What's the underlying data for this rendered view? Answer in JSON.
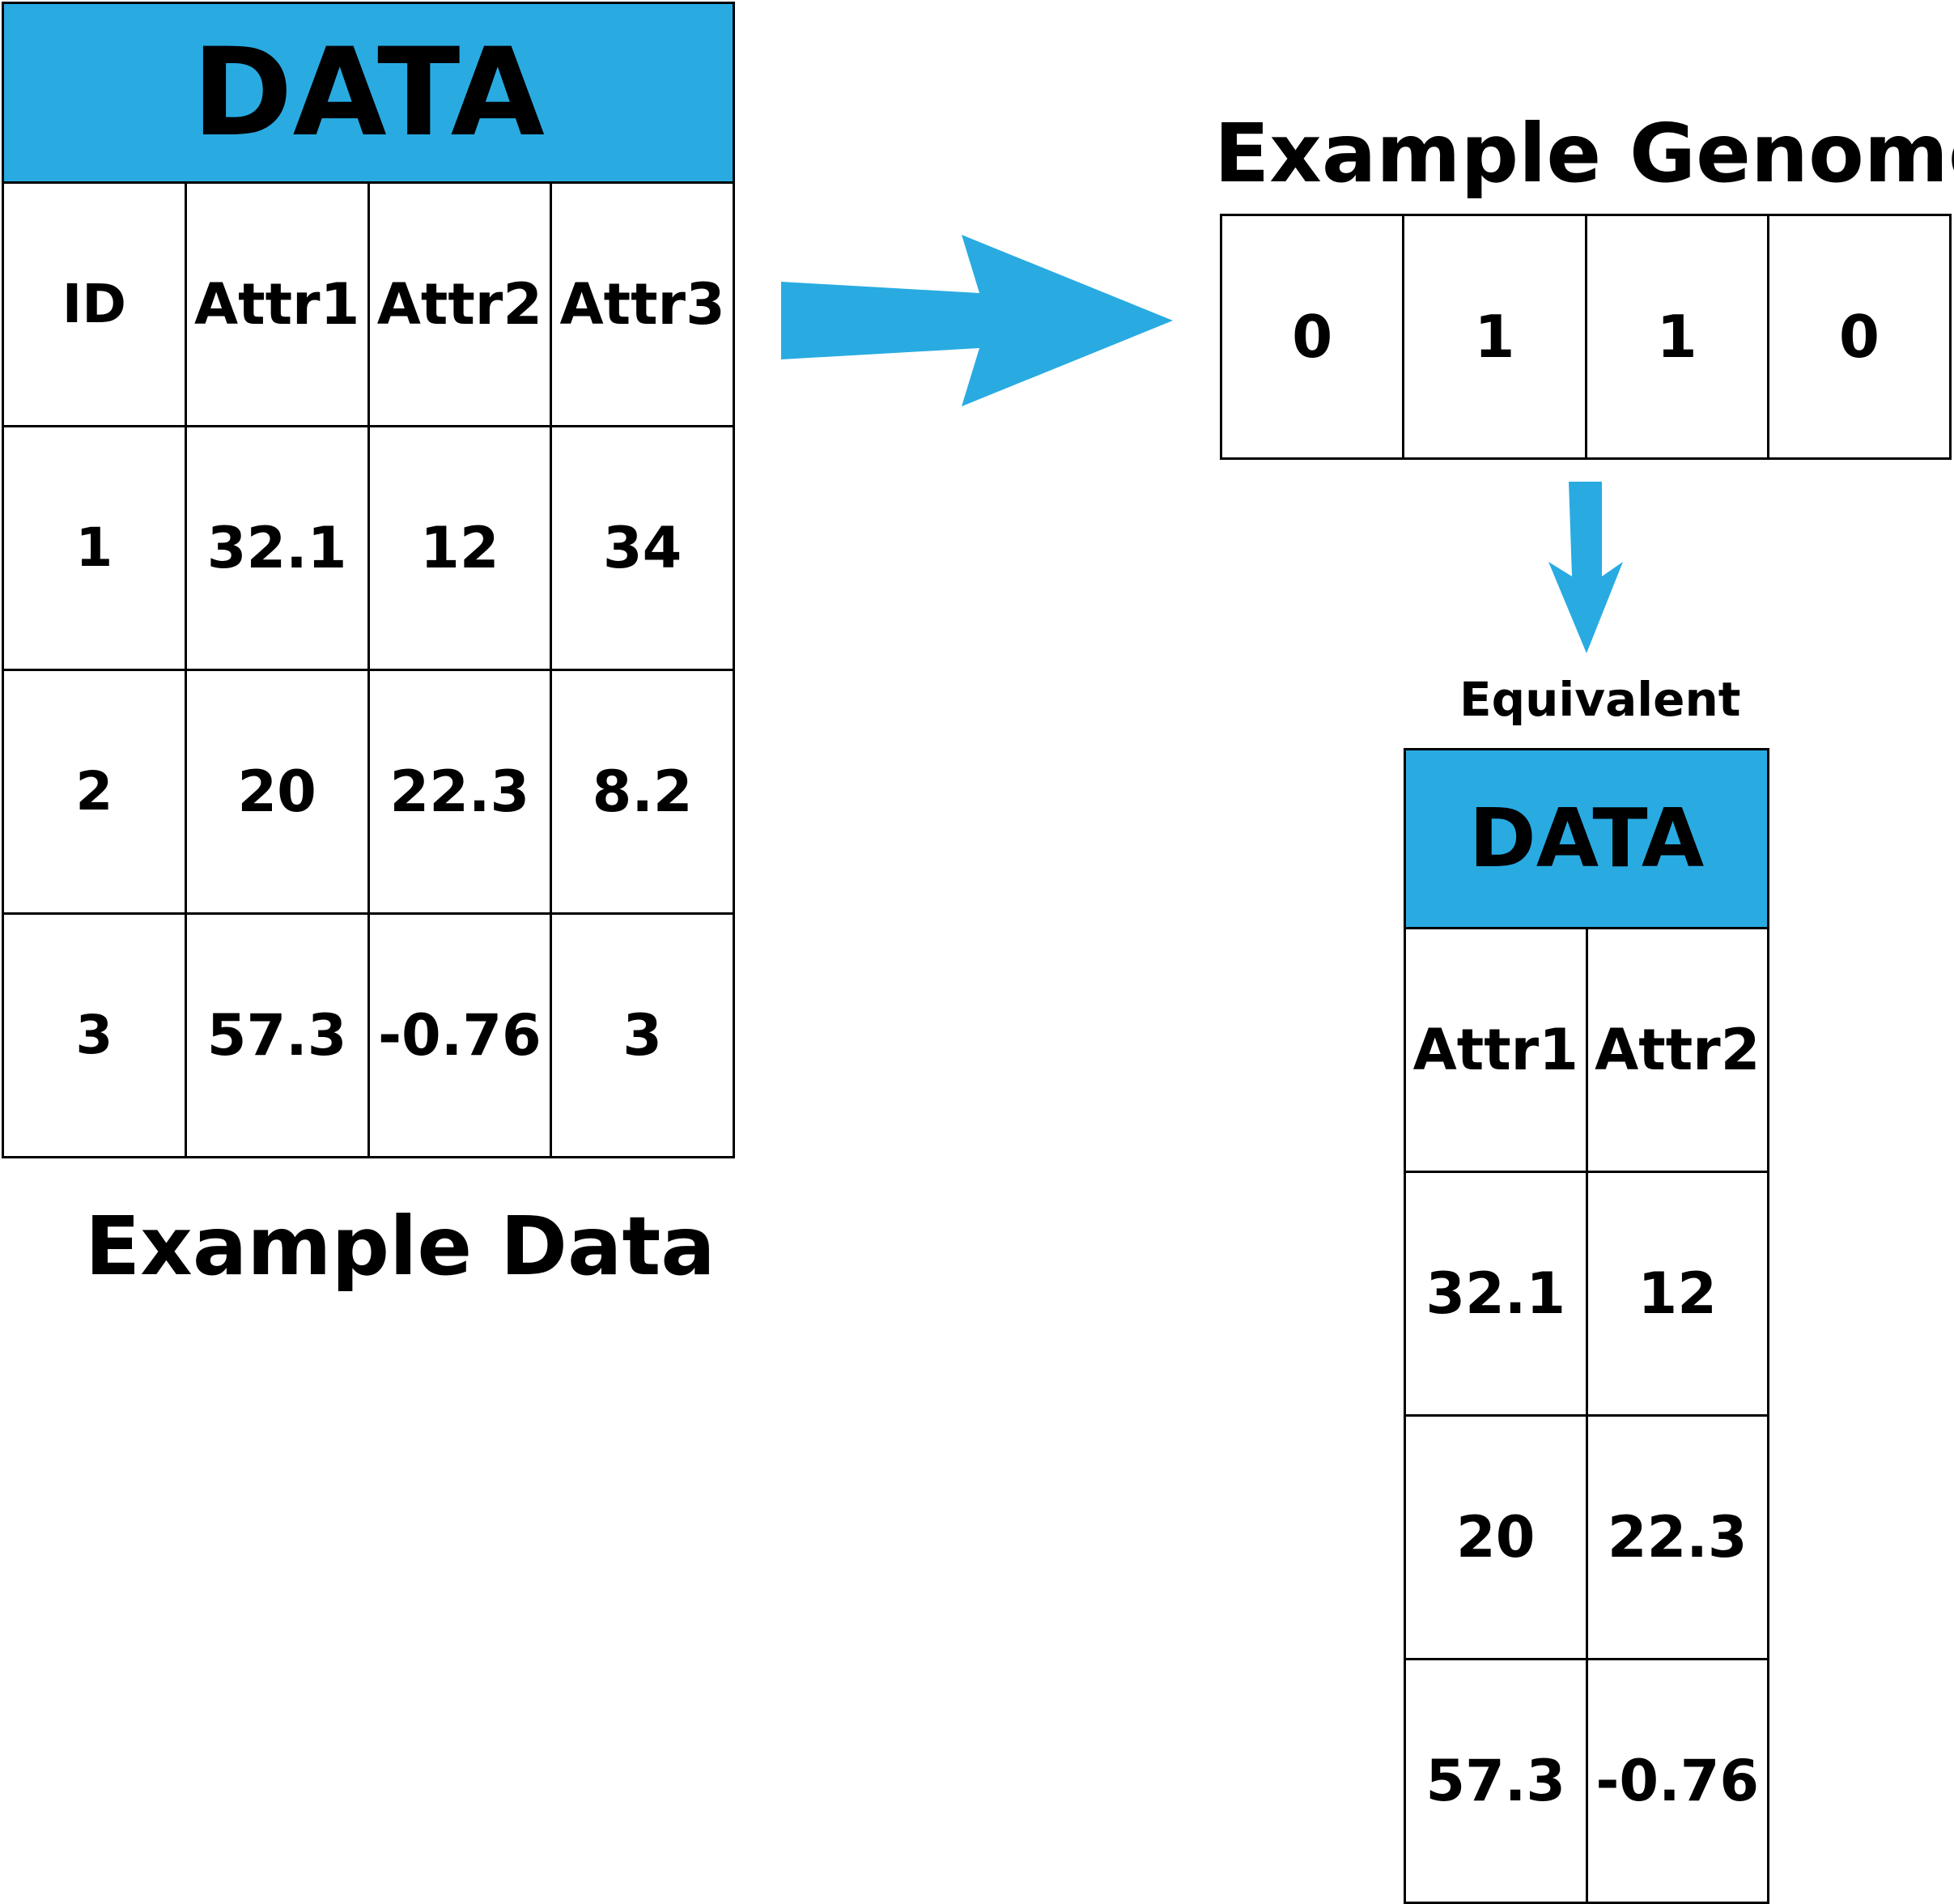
{
  "main_table": {
    "title": "DATA",
    "columns": [
      "ID",
      "Attr1",
      "Attr2",
      "Attr3"
    ],
    "rows": [
      [
        "1",
        "32.1",
        "12",
        "34"
      ],
      [
        "2",
        "20",
        "22.3",
        "8.2"
      ],
      [
        "3",
        "57.3",
        "-0.76",
        "3"
      ]
    ],
    "caption": "Example Data"
  },
  "genome": {
    "caption": "Example Genome",
    "bits": [
      "0",
      "1",
      "1",
      "0"
    ]
  },
  "equivalent_label": "Equivalent",
  "equivalent_table": {
    "title": "DATA",
    "columns": [
      "Attr1",
      "Attr2"
    ],
    "rows": [
      [
        "32.1",
        "12"
      ],
      [
        "20",
        "22.3"
      ],
      [
        "57.3",
        "-0.76"
      ]
    ]
  },
  "colors": {
    "header_fill": "#29abe2",
    "arrow_fill": "#29abe2",
    "border": "#000000"
  }
}
